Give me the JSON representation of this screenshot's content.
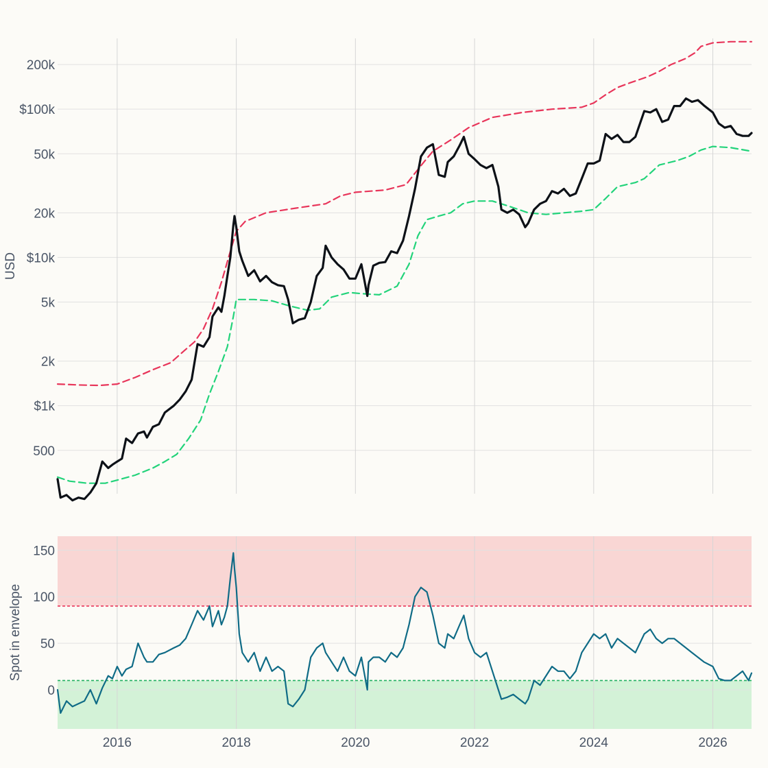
{
  "chart_data": [
    {
      "type": "line",
      "scale": "log",
      "ylabel": "USD",
      "xlim": [
        2015.0,
        2026.65
      ],
      "ylim": [
        255,
        300000
      ],
      "yticks": [
        500,
        1000,
        2000,
        5000,
        10000,
        20000,
        50000,
        100000,
        200000
      ],
      "ytick_labels": [
        "500",
        "$1k",
        "2k",
        "5k",
        "$10k",
        "20k",
        "50k",
        "$100k",
        "200k"
      ],
      "xticks": [
        2016,
        2018,
        2020,
        2022,
        2024,
        2026
      ],
      "xtick_labels": [
        "2016",
        "2018",
        "2020",
        "2022",
        "2024",
        "2026"
      ],
      "grid": true,
      "series": [
        {
          "role": "upper envelope",
          "color": "#e8355a",
          "dash": "dashed",
          "x": [
            2015.0,
            2015.35,
            2015.7,
            2016.0,
            2016.3,
            2016.6,
            2016.9,
            2017.1,
            2017.3,
            2017.45,
            2017.6,
            2017.75,
            2017.9,
            2018.0,
            2018.15,
            2018.5,
            2019.0,
            2019.5,
            2019.75,
            2020.0,
            2020.5,
            2020.85,
            2021.0,
            2021.15,
            2021.3,
            2021.6,
            2021.9,
            2022.3,
            2022.8,
            2023.3,
            2023.8,
            2024.0,
            2024.2,
            2024.4,
            2024.6,
            2024.9,
            2025.1,
            2025.3,
            2025.55,
            2025.7,
            2025.8,
            2026.0,
            2026.3,
            2026.65
          ],
          "values": [
            1400,
            1380,
            1370,
            1400,
            1550,
            1750,
            1950,
            2300,
            2700,
            3300,
            4500,
            6800,
            11000,
            15000,
            17500,
            20000,
            21500,
            23000,
            26000,
            27500,
            28500,
            31000,
            37000,
            44000,
            52000,
            62000,
            75000,
            88000,
            95000,
            100000,
            103000,
            110000,
            125000,
            140000,
            150000,
            165000,
            180000,
            200000,
            220000,
            240000,
            265000,
            280000,
            285000,
            285000
          ]
        },
        {
          "role": "lower envelope",
          "color": "#22d37a",
          "dash": "dashed",
          "x": [
            2015.0,
            2015.2,
            2015.5,
            2015.8,
            2016.0,
            2016.3,
            2016.6,
            2016.8,
            2017.0,
            2017.2,
            2017.4,
            2017.55,
            2017.7,
            2017.85,
            2017.95,
            2018.0,
            2018.3,
            2018.6,
            2018.9,
            2019.2,
            2019.4,
            2019.6,
            2019.9,
            2020.1,
            2020.4,
            2020.7,
            2020.9,
            2021.05,
            2021.2,
            2021.4,
            2021.6,
            2021.8,
            2022.0,
            2022.3,
            2022.6,
            2022.9,
            2023.2,
            2023.5,
            2023.8,
            2024.0,
            2024.2,
            2024.4,
            2024.7,
            2024.85,
            2025.1,
            2025.4,
            2025.6,
            2025.8,
            2026.0,
            2026.3,
            2026.65
          ],
          "values": [
            330,
            310,
            300,
            300,
            315,
            340,
            380,
            420,
            470,
            600,
            800,
            1200,
            1700,
            2500,
            4000,
            5200,
            5200,
            5100,
            4700,
            4400,
            4500,
            5400,
            5800,
            5700,
            5600,
            6400,
            9000,
            14000,
            18000,
            19000,
            20000,
            23000,
            24000,
            24000,
            22000,
            20000,
            19500,
            20000,
            20500,
            21000,
            25000,
            30000,
            32000,
            34000,
            42000,
            45000,
            48000,
            53000,
            56000,
            55000,
            52000
          ]
        },
        {
          "role": "spot price",
          "color": "#0d1117",
          "dash": "solid",
          "x": [
            2015.0,
            2015.05,
            2015.15,
            2015.25,
            2015.35,
            2015.45,
            2015.55,
            2015.65,
            2015.75,
            2015.85,
            2015.92,
            2016.0,
            2016.08,
            2016.15,
            2016.25,
            2016.35,
            2016.45,
            2016.5,
            2016.6,
            2016.7,
            2016.8,
            2016.95,
            2017.05,
            2017.15,
            2017.25,
            2017.35,
            2017.45,
            2017.55,
            2017.6,
            2017.7,
            2017.75,
            2017.8,
            2017.85,
            2017.9,
            2017.95,
            2017.97,
            2018.0,
            2018.05,
            2018.1,
            2018.2,
            2018.3,
            2018.4,
            2018.5,
            2018.6,
            2018.7,
            2018.8,
            2018.87,
            2018.95,
            2019.05,
            2019.15,
            2019.25,
            2019.35,
            2019.45,
            2019.5,
            2019.6,
            2019.7,
            2019.8,
            2019.9,
            2020.0,
            2020.1,
            2020.2,
            2020.22,
            2020.3,
            2020.4,
            2020.5,
            2020.6,
            2020.7,
            2020.8,
            2020.9,
            2021.0,
            2021.1,
            2021.2,
            2021.3,
            2021.4,
            2021.5,
            2021.55,
            2021.65,
            2021.75,
            2021.82,
            2021.9,
            2022.0,
            2022.1,
            2022.2,
            2022.3,
            2022.4,
            2022.45,
            2022.55,
            2022.65,
            2022.75,
            2022.85,
            2022.9,
            2023.0,
            2023.1,
            2023.2,
            2023.3,
            2023.4,
            2023.5,
            2023.6,
            2023.7,
            2023.8,
            2023.9,
            2024.0,
            2024.1,
            2024.2,
            2024.3,
            2024.4,
            2024.5,
            2024.6,
            2024.7,
            2024.85,
            2024.95,
            2025.05,
            2025.15,
            2025.25,
            2025.35,
            2025.45,
            2025.55,
            2025.65,
            2025.75,
            2025.85,
            2026.0,
            2026.1,
            2026.2,
            2026.3,
            2026.4,
            2026.5,
            2026.6,
            2026.65
          ],
          "values": [
            320,
            240,
            250,
            230,
            240,
            235,
            260,
            300,
            420,
            380,
            400,
            420,
            440,
            600,
            560,
            650,
            670,
            610,
            720,
            750,
            900,
            1000,
            1100,
            1250,
            1500,
            2600,
            2500,
            2900,
            4000,
            4600,
            4300,
            5500,
            7500,
            10000,
            16500,
            19000,
            16000,
            11000,
            9500,
            7500,
            8200,
            6900,
            7500,
            6800,
            6500,
            6400,
            5200,
            3600,
            3800,
            3900,
            5000,
            7500,
            8500,
            12000,
            10000,
            9000,
            8300,
            7200,
            7200,
            9000,
            5500,
            6500,
            8800,
            9200,
            9300,
            11000,
            10700,
            13000,
            19000,
            29000,
            48000,
            55000,
            58000,
            36000,
            35000,
            44000,
            48000,
            57000,
            65000,
            50000,
            46000,
            42000,
            40000,
            42000,
            30000,
            21000,
            20000,
            21000,
            19500,
            16000,
            17000,
            21000,
            23000,
            24000,
            28000,
            27000,
            29000,
            26000,
            27000,
            34000,
            43000,
            43000,
            45000,
            68000,
            63000,
            67000,
            60000,
            60000,
            65000,
            97000,
            95000,
            100000,
            82000,
            85000,
            105000,
            105000,
            118000,
            112000,
            115000,
            106000,
            95000,
            80000,
            75000,
            77000,
            68000,
            66000,
            66000,
            69000
          ]
        }
      ]
    },
    {
      "type": "line",
      "ylabel": "Spot in envelope",
      "xlim": [
        2015.0,
        2026.65
      ],
      "ylim": [
        -42,
        165
      ],
      "yticks": [
        0,
        50,
        100,
        150
      ],
      "ytick_labels": [
        "0",
        "50",
        "100",
        "150"
      ],
      "xticks": [
        2016,
        2018,
        2020,
        2022,
        2024,
        2026
      ],
      "xtick_labels": [
        "2016",
        "2018",
        "2020",
        "2022",
        "2024",
        "2026"
      ],
      "grid": true,
      "zones": [
        {
          "from": 90,
          "to": 165,
          "color": "#f9d6d4"
        },
        {
          "from": -42,
          "to": 10,
          "color": "#d3f2d7"
        }
      ],
      "thresholds": [
        {
          "value": 90,
          "color": "#e8355a"
        },
        {
          "value": 10,
          "color": "#22b062"
        }
      ],
      "series": [
        {
          "role": "spot in envelope",
          "color": "#0f6b86",
          "x": [
            2015.0,
            2015.05,
            2015.15,
            2015.25,
            2015.35,
            2015.45,
            2015.55,
            2015.65,
            2015.75,
            2015.85,
            2015.92,
            2016.0,
            2016.08,
            2016.15,
            2016.25,
            2016.35,
            2016.45,
            2016.5,
            2016.6,
            2016.7,
            2016.8,
            2016.95,
            2017.05,
            2017.15,
            2017.25,
            2017.35,
            2017.45,
            2017.55,
            2017.6,
            2017.7,
            2017.75,
            2017.8,
            2017.85,
            2017.9,
            2017.95,
            2017.97,
            2018.0,
            2018.05,
            2018.1,
            2018.2,
            2018.3,
            2018.4,
            2018.5,
            2018.6,
            2018.7,
            2018.8,
            2018.87,
            2018.95,
            2019.05,
            2019.15,
            2019.25,
            2019.35,
            2019.45,
            2019.5,
            2019.6,
            2019.7,
            2019.8,
            2019.9,
            2020.0,
            2020.1,
            2020.2,
            2020.22,
            2020.3,
            2020.4,
            2020.5,
            2020.6,
            2020.7,
            2020.8,
            2020.9,
            2021.0,
            2021.1,
            2021.2,
            2021.3,
            2021.4,
            2021.5,
            2021.55,
            2021.65,
            2021.75,
            2021.82,
            2021.9,
            2022.0,
            2022.1,
            2022.2,
            2022.3,
            2022.4,
            2022.45,
            2022.55,
            2022.65,
            2022.75,
            2022.85,
            2022.9,
            2023.0,
            2023.1,
            2023.2,
            2023.3,
            2023.4,
            2023.5,
            2023.6,
            2023.7,
            2023.8,
            2023.9,
            2024.0,
            2024.1,
            2024.2,
            2024.3,
            2024.4,
            2024.5,
            2024.6,
            2024.7,
            2024.85,
            2024.95,
            2025.05,
            2025.15,
            2025.25,
            2025.35,
            2025.45,
            2025.55,
            2025.65,
            2025.75,
            2025.85,
            2026.0,
            2026.1,
            2026.2,
            2026.3,
            2026.4,
            2026.5,
            2026.6,
            2026.65
          ],
          "values": [
            0,
            -25,
            -12,
            -18,
            -15,
            -12,
            0,
            -15,
            2,
            15,
            12,
            25,
            15,
            22,
            25,
            50,
            35,
            30,
            30,
            38,
            40,
            45,
            48,
            55,
            70,
            85,
            75,
            90,
            68,
            85,
            70,
            78,
            90,
            120,
            147,
            130,
            110,
            60,
            40,
            30,
            40,
            20,
            35,
            20,
            25,
            20,
            -15,
            -18,
            -10,
            0,
            35,
            45,
            50,
            40,
            30,
            20,
            35,
            20,
            15,
            35,
            0,
            30,
            35,
            35,
            30,
            40,
            35,
            45,
            70,
            100,
            110,
            105,
            80,
            50,
            45,
            60,
            55,
            70,
            80,
            55,
            40,
            35,
            40,
            20,
            0,
            -10,
            -8,
            -5,
            -10,
            -15,
            -10,
            10,
            5,
            15,
            25,
            20,
            20,
            12,
            20,
            40,
            50,
            60,
            55,
            60,
            45,
            55,
            50,
            45,
            40,
            60,
            65,
            55,
            50,
            55,
            55,
            50,
            45,
            40,
            35,
            30,
            25,
            12,
            10,
            10,
            15,
            20,
            10,
            18
          ]
        }
      ]
    }
  ]
}
